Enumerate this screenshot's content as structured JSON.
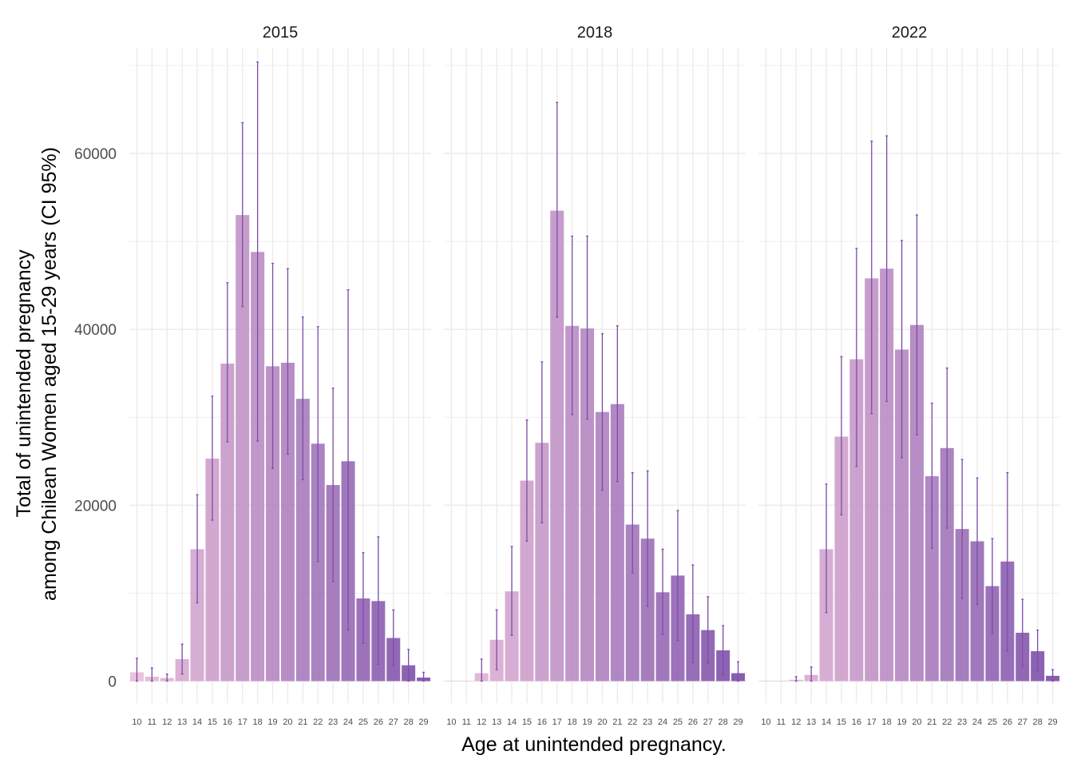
{
  "chart_data": {
    "type": "bar",
    "xlabel": "Age at unintended pregnancy.",
    "ylabel_lines": [
      "Total of unintended pregnancy",
      "among Chilean Women aged 15-29 years (CI 95%)"
    ],
    "ylim": [
      -2500,
      72000
    ],
    "y_ticks": [
      0,
      20000,
      40000,
      60000
    ],
    "y_tick_labels": [
      "0",
      "20000",
      "40000",
      "60000"
    ],
    "categories": [
      "10",
      "11",
      "12",
      "13",
      "14",
      "15",
      "16",
      "17",
      "18",
      "19",
      "20",
      "21",
      "22",
      "23",
      "24",
      "25",
      "26",
      "27",
      "28",
      "29"
    ],
    "grid": true,
    "legend": "none",
    "colors": {
      "start": "#eabbd8",
      "end": "#7a4ca8",
      "error_bar": "#7b4fa8",
      "gridline": "#ebebeb"
    },
    "panels": [
      {
        "title": "2015",
        "values": [
          1000,
          500,
          350,
          2500,
          15000,
          25300,
          36100,
          53000,
          48800,
          35800,
          36200,
          32100,
          27000,
          22300,
          25000,
          9400,
          9100,
          4900,
          1800,
          400
        ],
        "lower": [
          0,
          0,
          0,
          800,
          8900,
          18300,
          27200,
          42600,
          27300,
          24200,
          25800,
          22900,
          13600,
          11300,
          5800,
          4300,
          1900,
          1800,
          0,
          0
        ],
        "upper": [
          2600,
          1500,
          800,
          4200,
          21200,
          32400,
          45300,
          63500,
          70400,
          47500,
          46900,
          41400,
          40300,
          33300,
          44500,
          14600,
          16400,
          8100,
          3600,
          1000
        ]
      },
      {
        "title": "2018",
        "values": [
          0,
          0,
          900,
          4700,
          10200,
          22800,
          27100,
          53500,
          40400,
          40100,
          30600,
          31500,
          17800,
          16200,
          10100,
          12000,
          7600,
          5800,
          3500,
          900
        ],
        "lower": [
          0,
          0,
          0,
          1300,
          5200,
          15900,
          18000,
          41400,
          30300,
          29800,
          21700,
          22700,
          12300,
          8500,
          5300,
          4600,
          2100,
          2000,
          700,
          0
        ],
        "upper": [
          0,
          0,
          2500,
          8100,
          15300,
          29700,
          36300,
          65800,
          50600,
          50600,
          39500,
          40400,
          23700,
          23900,
          15000,
          19400,
          13200,
          9600,
          6300,
          2200
        ]
      },
      {
        "title": "2022",
        "values": [
          0,
          0,
          150,
          700,
          15000,
          27800,
          36600,
          45800,
          46900,
          37700,
          40500,
          23300,
          26500,
          17300,
          15900,
          10800,
          13600,
          5500,
          3400,
          600
        ],
        "lower": [
          0,
          0,
          0,
          0,
          7800,
          18900,
          24400,
          30400,
          31800,
          25400,
          28000,
          15100,
          17400,
          9400,
          8700,
          5400,
          3400,
          1700,
          1100,
          0
        ],
        "upper": [
          0,
          0,
          500,
          1600,
          22400,
          36900,
          49200,
          61400,
          62000,
          50100,
          53000,
          31600,
          35600,
          25200,
          23100,
          16200,
          23700,
          9300,
          5800,
          1300
        ]
      }
    ]
  }
}
